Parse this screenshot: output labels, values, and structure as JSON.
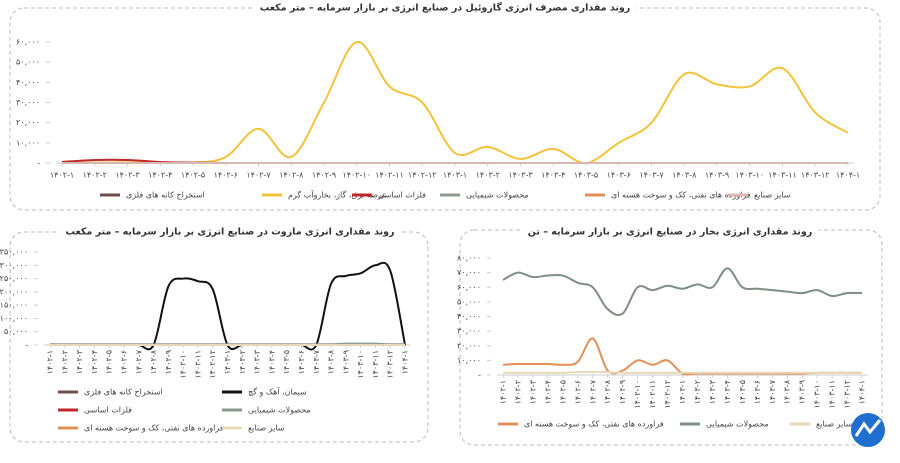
{
  "chart_data": [
    {
      "type": "line",
      "title": "روند مقداری مصرف انرژی گازوئیل در صنایع انرژی بر بازار سرمایه – متر مکعب",
      "categories": [
        "۱۴۰۲-۱",
        "۱۴۰۲-۲",
        "۱۴۰۲-۳",
        "۱۴۰۲-۴",
        "۱۴۰۲-۵",
        "۱۴۰۲-۶",
        "۱۴۰۲-۷",
        "۱۴۰۲-۸",
        "۱۴۰۲-۹",
        "۱۴۰۲-۱۰",
        "۱۴۰۲-۱۱",
        "۱۴۰۲-۱۲",
        "۱۴۰۳-۱",
        "۱۴۰۳-۲",
        "۱۴۰۳-۳",
        "۱۴۰۳-۴",
        "۱۴۰۳-۵",
        "۱۴۰۳-۶",
        "۱۴۰۳-۷",
        "۱۴۰۳-۸",
        "۱۴۰۳-۹",
        "۱۴۰۳-۱۰",
        "۱۴۰۳-۱۱",
        "۱۴۰۳-۱۲",
        "۱۴۰۴-۱"
      ],
      "ylim": [
        0,
        60000
      ],
      "yticks": [
        {
          "value": 0,
          "label": "-"
        },
        {
          "value": 10000,
          "label": "۱۰,۰۰۰"
        },
        {
          "value": 20000,
          "label": "۲۰,۰۰۰"
        },
        {
          "value": 30000,
          "label": "۳۰,۰۰۰"
        },
        {
          "value": 40000,
          "label": "۴۰,۰۰۰"
        },
        {
          "value": 50000,
          "label": "۵۰,۰۰۰"
        },
        {
          "value": 60000,
          "label": "۶۰,۰۰۰"
        }
      ],
      "series": [
        {
          "name": "استخراج کانه های فلزی",
          "color": "#6d4c4c",
          "values": [
            0,
            0,
            0,
            0,
            0,
            0,
            0,
            0,
            0,
            0,
            0,
            0,
            0,
            0,
            0,
            0,
            0,
            0,
            0,
            0,
            0,
            0,
            0,
            0,
            0
          ]
        },
        {
          "name": "عرضه برق، گاز، بخاروآب گرم",
          "color": "#f5c33b",
          "values": [
            0,
            200,
            300,
            300,
            200,
            3000,
            17000,
            3000,
            30000,
            60000,
            38000,
            30000,
            5000,
            8000,
            2000,
            7000,
            0,
            10000,
            20000,
            44000,
            39000,
            38000,
            47000,
            25000,
            15000
          ]
        },
        {
          "name": "فلزات اساسی",
          "color": "#c0272d",
          "values": [
            500,
            1500,
            1500,
            500,
            200,
            0,
            0,
            0,
            0,
            0,
            0,
            0,
            0,
            0,
            0,
            0,
            0,
            0,
            0,
            0,
            0,
            0,
            0,
            0,
            0
          ]
        },
        {
          "name": "محصولات شیمیایی",
          "color": "#8a9a8e",
          "values": [
            0,
            0,
            0,
            0,
            0,
            0,
            0,
            0,
            0,
            0,
            0,
            0,
            0,
            0,
            0,
            0,
            0,
            0,
            0,
            0,
            0,
            0,
            0,
            0,
            0
          ]
        },
        {
          "name": "فراورده های نفتی، کک و سوخت هسته ای",
          "color": "#e0915a",
          "values": [
            0,
            0,
            0,
            0,
            0,
            0,
            0,
            0,
            0,
            0,
            0,
            0,
            0,
            0,
            0,
            0,
            0,
            0,
            0,
            0,
            0,
            0,
            0,
            0,
            0
          ]
        },
        {
          "name": "سایر صنایع",
          "color": "#d8b8b0",
          "values": [
            0,
            0,
            0,
            0,
            0,
            0,
            0,
            0,
            0,
            0,
            0,
            0,
            0,
            0,
            0,
            0,
            0,
            0,
            0,
            0,
            0,
            0,
            0,
            0,
            0
          ]
        }
      ]
    },
    {
      "type": "line",
      "title": "روند مقداری انرژی مازوت  در صنایع انرژی بر بازار سرمایه – متر مکعب",
      "categories": [
        "۱۴۰۲-۱",
        "۱۴۰۲-۲",
        "۱۴۰۲-۳",
        "۱۴۰۲-۴",
        "۱۴۰۲-۵",
        "۱۴۰۲-۶",
        "۱۴۰۲-۷",
        "۱۴۰۲-۸",
        "۱۴۰۲-۹",
        "۱۴۰۲-۱۰",
        "۱۴۰۲-۱۱",
        "۱۴۰۲-۱۲",
        "۱۴۰۳-۱",
        "۱۴۰۳-۲",
        "۱۴۰۳-۳",
        "۱۴۰۳-۴",
        "۱۴۰۳-۵",
        "۱۴۰۳-۶",
        "۱۴۰۳-۷",
        "۱۴۰۳-۸",
        "۱۴۰۳-۹",
        "۱۴۰۳-۱۰",
        "۱۴۰۳-۱۱",
        "۱۴۰۳-۱۲",
        "۱۴۰۴-۱"
      ],
      "ylim": [
        0,
        350000
      ],
      "yticks": [
        {
          "value": 0,
          "label": "-"
        },
        {
          "value": 50000,
          "label": "۵۰,۰۰۰"
        },
        {
          "value": 100000,
          "label": "۱۰۰,۰۰۰"
        },
        {
          "value": 150000,
          "label": "۱۵۰,۰۰۰"
        },
        {
          "value": 200000,
          "label": "۲۰۰,۰۰۰"
        },
        {
          "value": 250000,
          "label": "۲۵۰,۰۰۰"
        },
        {
          "value": 300000,
          "label": "۳۰۰,۰۰۰"
        },
        {
          "value": 350000,
          "label": "۳۵۰,۰۰۰"
        }
      ],
      "series": [
        {
          "name": "استخراج کانه های فلزی",
          "color": "#6d4c4c",
          "values": [
            1500,
            1500,
            1500,
            1500,
            1500,
            1500,
            1500,
            1500,
            1500,
            1500,
            1500,
            1500,
            1500,
            1500,
            1500,
            1500,
            1500,
            1500,
            1500,
            1500,
            1500,
            1500,
            1500,
            1500,
            1500
          ]
        },
        {
          "name": "سیمان، آهک و گچ",
          "color": "#111111",
          "values": [
            0,
            0,
            0,
            0,
            0,
            0,
            0,
            0,
            220000,
            250000,
            240000,
            210000,
            0,
            0,
            0,
            0,
            0,
            0,
            0,
            230000,
            260000,
            270000,
            300000,
            280000,
            0
          ]
        },
        {
          "name": "فلزات اساسی",
          "color": "#c0272d",
          "values": [
            0,
            0,
            0,
            0,
            0,
            0,
            0,
            0,
            0,
            0,
            0,
            0,
            0,
            0,
            0,
            0,
            0,
            0,
            0,
            0,
            0,
            0,
            0,
            0,
            0
          ]
        },
        {
          "name": "محصولات شیمیایی",
          "color": "#8a9a8e",
          "values": [
            3000,
            3000,
            3000,
            3000,
            3000,
            3000,
            3000,
            3000,
            3000,
            3000,
            3000,
            3000,
            3000,
            3000,
            3000,
            3000,
            3000,
            3000,
            3000,
            3000,
            5000,
            5000,
            5000,
            3000,
            3000
          ]
        },
        {
          "name": "فراورده های نفتی، کک و سوخت هسته ای",
          "color": "#e0915a",
          "values": [
            0,
            0,
            0,
            0,
            0,
            0,
            0,
            0,
            0,
            0,
            0,
            0,
            0,
            0,
            0,
            0,
            0,
            0,
            0,
            0,
            0,
            0,
            0,
            0,
            0
          ]
        },
        {
          "name": "سایر صنایع",
          "color": "#e8d8b8",
          "values": [
            0,
            0,
            0,
            0,
            0,
            0,
            0,
            0,
            0,
            0,
            0,
            0,
            0,
            0,
            0,
            0,
            0,
            0,
            0,
            0,
            0,
            0,
            0,
            0,
            0
          ]
        }
      ]
    },
    {
      "type": "line",
      "title": "روند مقداری انرژی بخار در صنایع انرژی بر بازار سرمایه – تن",
      "categories": [
        "۱۴۰۲-۱",
        "۱۴۰۲-۲",
        "۱۴۰۲-۳",
        "۱۴۰۲-۴",
        "۱۴۰۲-۵",
        "۱۴۰۲-۶",
        "۱۴۰۲-۷",
        "۱۴۰۲-۸",
        "۱۴۰۲-۹",
        "۱۴۰۲-۱۰",
        "۱۴۰۲-۱۱",
        "۱۴۰۲-۱۲",
        "۱۴۰۳-۱",
        "۱۴۰۳-۲",
        "۱۴۰۳-۳",
        "۱۴۰۳-۴",
        "۱۴۰۳-۵",
        "۱۴۰۳-۶",
        "۱۴۰۳-۷",
        "۱۴۰۳-۸",
        "۱۴۰۳-۹",
        "۱۴۰۳-۱۰",
        "۱۴۰۳-۱۱",
        "۱۴۰۳-۱۲",
        "۱۴۰۴-۱"
      ],
      "ylim": [
        0,
        80000
      ],
      "yticks": [
        {
          "value": 0,
          "label": "-"
        },
        {
          "value": 10000,
          "label": "۱۰,۰۰۰"
        },
        {
          "value": 20000,
          "label": "۲۰,۰۰۰"
        },
        {
          "value": 30000,
          "label": "۳۰,۰۰۰"
        },
        {
          "value": 40000,
          "label": "۴۰,۰۰۰"
        },
        {
          "value": 50000,
          "label": "۵۰,۰۰۰"
        },
        {
          "value": 60000,
          "label": "۶۰,۰۰۰"
        },
        {
          "value": 70000,
          "label": "۷۰,۰۰۰"
        },
        {
          "value": 80000,
          "label": "۸۰,۰۰۰"
        }
      ],
      "series": [
        {
          "name": "فراورده های نفتی، کک و سوخت هسته ای",
          "color": "#e0915a",
          "values": [
            7000,
            7500,
            7500,
            7500,
            7000,
            9000,
            25000,
            3000,
            3000,
            10000,
            7000,
            10000,
            1000,
            1000,
            1000,
            1000,
            1000,
            1000,
            1000,
            1000,
            1000,
            1500,
            1500,
            1500,
            1500
          ]
        },
        {
          "name": "محصولات شیمیایی",
          "color": "#7f8f84",
          "values": [
            65000,
            70000,
            67000,
            68000,
            68000,
            63000,
            60000,
            45000,
            42000,
            60000,
            58000,
            61000,
            59000,
            62000,
            60000,
            73000,
            60000,
            59000,
            58000,
            57000,
            56000,
            58000,
            54000,
            56000,
            56000
          ]
        },
        {
          "name": "سایر صنایع",
          "color": "#e8d8b8",
          "values": [
            1500,
            1500,
            1500,
            1500,
            1500,
            2000,
            2000,
            2000,
            1500,
            1500,
            1500,
            1500,
            1500,
            1500,
            1500,
            1500,
            1500,
            1500,
            1500,
            1500,
            1500,
            1500,
            1500,
            1500,
            1500
          ]
        }
      ]
    }
  ]
}
